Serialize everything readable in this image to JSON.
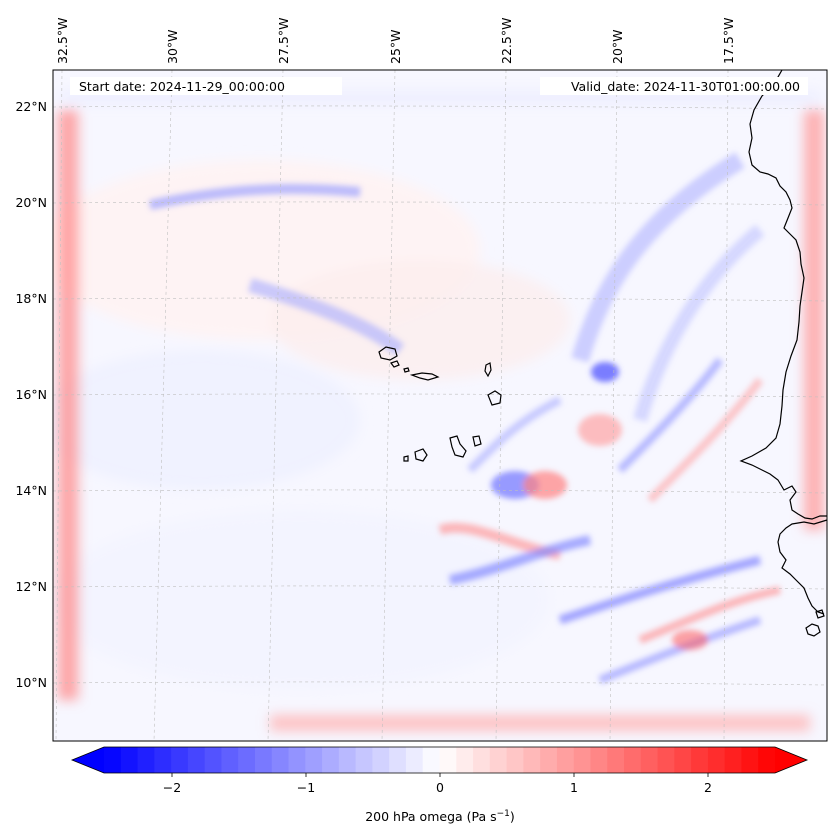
{
  "header": {
    "start_date": "Start date: 2024-11-29_00:00:00",
    "valid_date": "Valid_date: 2024-11-30T01:00:00.00"
  },
  "map": {
    "lon_labels": [
      "32.5°W",
      "30°W",
      "27.5°W",
      "25°W",
      "22.5°W",
      "20°W",
      "17.5°W"
    ],
    "lat_labels": [
      "22°N",
      "20°N",
      "18°N",
      "16°N",
      "14°N",
      "12°N",
      "10°N"
    ]
  },
  "colorbar": {
    "label": "200 hPa omega (Pa s",
    "label_sup": "−1",
    "label_end": ")",
    "tick_labels": [
      "−2",
      "−1",
      "0",
      "1",
      "2"
    ],
    "range": [
      -2.7,
      2.7
    ],
    "colors": {
      "negative": "#0000ff",
      "zero": "#ffffff",
      "positive": "#ff0000"
    }
  },
  "chart_data": {
    "type": "heatmap",
    "field": "200 hPa omega",
    "units": "Pa s^-1",
    "colormap": "bwr",
    "vmin": -2.7,
    "vmax": 2.7,
    "colorbar_ticks": [
      -2,
      -1,
      0,
      1,
      2
    ],
    "lon_ticks": [
      -32.5,
      -30,
      -27.5,
      -25,
      -22.5,
      -20,
      -17.5
    ],
    "lat_ticks": [
      22,
      20,
      18,
      16,
      14,
      12,
      10
    ],
    "lon_range": [
      -33,
      -15.5
    ],
    "lat_range": [
      8.8,
      22.7
    ]
  }
}
